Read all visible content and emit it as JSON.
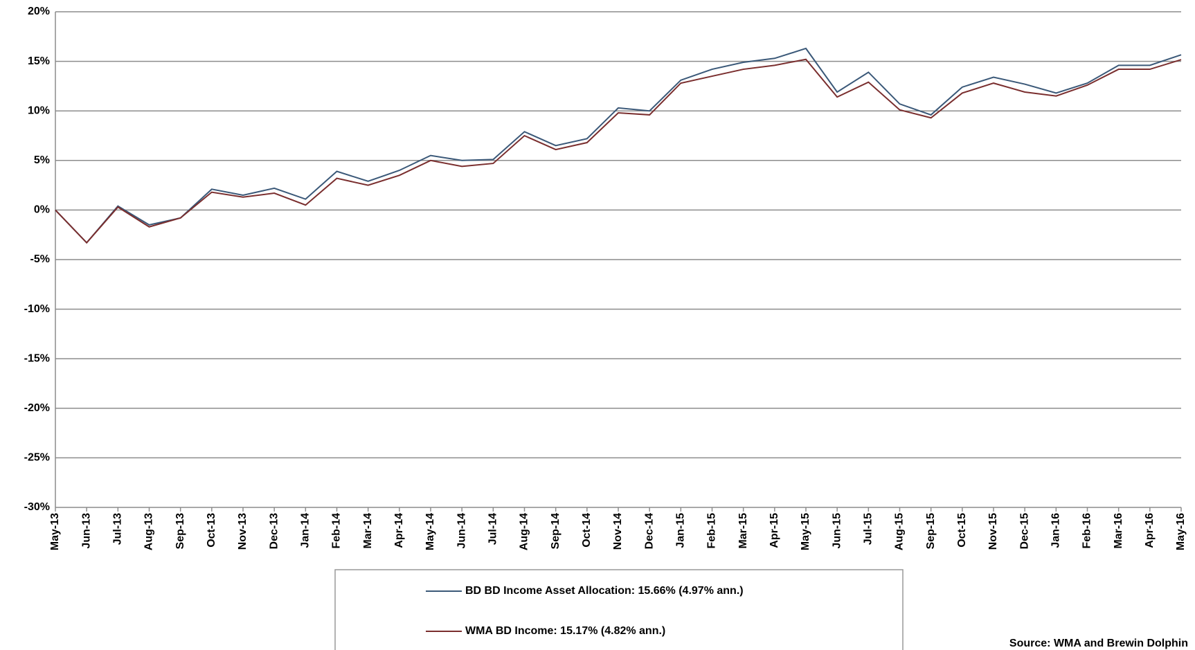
{
  "chart_data": {
    "type": "line",
    "categories": [
      "May-13",
      "Jun-13",
      "Jul-13",
      "Aug-13",
      "Sep-13",
      "Oct-13",
      "Nov-13",
      "Dec-13",
      "Jan-14",
      "Feb-14",
      "Mar-14",
      "Apr-14",
      "May-14",
      "Jun-14",
      "Jul-14",
      "Aug-14",
      "Sep-14",
      "Oct-14",
      "Nov-14",
      "Dec-14",
      "Jan-15",
      "Feb-15",
      "Mar-15",
      "Apr-15",
      "May-15",
      "Jun-15",
      "Jul-15",
      "Aug-15",
      "Sep-15",
      "Oct-15",
      "Nov-15",
      "Dec-15",
      "Jan-16",
      "Feb-16",
      "Mar-16",
      "Apr-16",
      "May-16"
    ],
    "series": [
      {
        "name": "BD BD Income Asset Allocation: 15.66% (4.97% ann.)",
        "color": "#3a5878",
        "values": [
          0,
          -3.3,
          0.4,
          -1.5,
          -0.8,
          2.1,
          1.5,
          2.2,
          1.1,
          3.9,
          2.9,
          4.0,
          5.5,
          5.0,
          5.1,
          7.9,
          6.5,
          7.2,
          10.3,
          10.0,
          13.1,
          14.2,
          14.9,
          15.3,
          16.3,
          11.9,
          13.9,
          10.7,
          9.6,
          12.4,
          13.4,
          12.7,
          11.8,
          12.8,
          14.6,
          14.6,
          15.66
        ]
      },
      {
        "name": "WMA BD Income: 15.17% (4.82% ann.)",
        "color": "#7a2e2e",
        "values": [
          0,
          -3.3,
          0.3,
          -1.7,
          -0.8,
          1.8,
          1.3,
          1.7,
          0.5,
          3.2,
          2.5,
          3.5,
          5.0,
          4.4,
          4.7,
          7.5,
          6.1,
          6.8,
          9.8,
          9.6,
          12.8,
          13.5,
          14.2,
          14.6,
          15.2,
          11.4,
          12.9,
          10.1,
          9.3,
          11.8,
          12.8,
          11.9,
          11.5,
          12.6,
          14.2,
          14.2,
          15.17
        ]
      }
    ],
    "ylim": [
      -30,
      20
    ],
    "yticks": [
      {
        "value": -30,
        "label": "-30%"
      },
      {
        "value": -25,
        "label": "-25%"
      },
      {
        "value": -20,
        "label": "-20%"
      },
      {
        "value": -15,
        "label": "-15%"
      },
      {
        "value": -10,
        "label": "-10%"
      },
      {
        "value": -5,
        "label": "-5%"
      },
      {
        "value": 0,
        "label": "0%"
      },
      {
        "value": 5,
        "label": "5%"
      },
      {
        "value": 10,
        "label": "10%"
      },
      {
        "value": 15,
        "label": "15%"
      },
      {
        "value": 20,
        "label": "20%"
      }
    ],
    "grid": true,
    "legend": "bottom",
    "source": "Source: WMA and Brewin Dolphin"
  }
}
